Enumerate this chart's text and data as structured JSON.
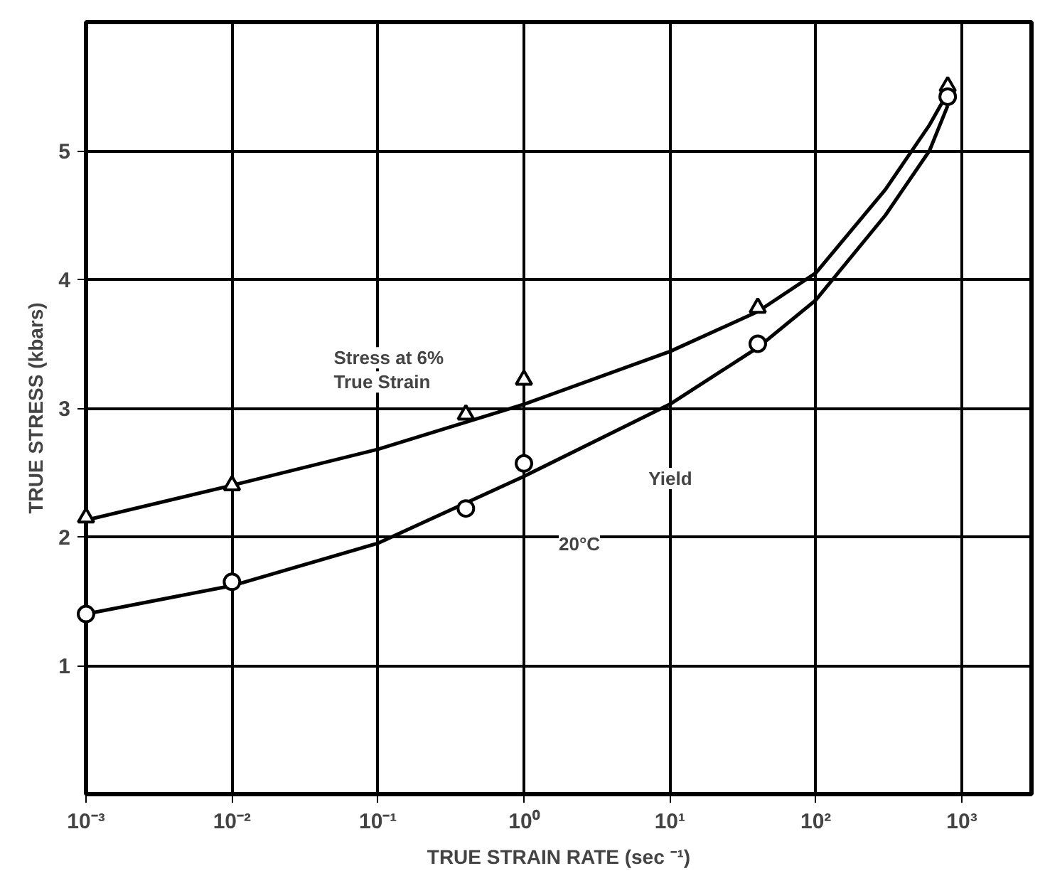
{
  "chart_data": {
    "type": "line",
    "xlabel": "TRUE STRAIN RATE (sec ⁻¹)",
    "ylabel": "TRUE STRESS (kbars)",
    "log": "x",
    "grid": true,
    "xlim": [
      0.001,
      3000
    ],
    "ylim": [
      0,
      6
    ],
    "xticks": [
      {
        "value": 0.001,
        "label": "10⁻³"
      },
      {
        "value": 0.01,
        "label": "10⁻²"
      },
      {
        "value": 0.1,
        "label": "10⁻¹"
      },
      {
        "value": 1,
        "label": "10⁰"
      },
      {
        "value": 10,
        "label": "10¹"
      },
      {
        "value": 100,
        "label": "10²"
      },
      {
        "value": 1000,
        "label": "10³"
      }
    ],
    "yticks": [
      1,
      2,
      3,
      4,
      5
    ],
    "series": [
      {
        "type": "scatter",
        "marker": "triangle",
        "color": "#000000",
        "x": [
          0.001,
          0.01,
          0.4,
          1,
          40,
          800
        ],
        "values": [
          2.15,
          2.4,
          2.95,
          3.22,
          3.78,
          5.5
        ]
      },
      {
        "type": "scatter",
        "marker": "circle",
        "color": "#000000",
        "x": [
          0.001,
          0.01,
          0.4,
          1,
          40,
          800
        ],
        "values": [
          1.4,
          1.65,
          2.22,
          2.57,
          3.5,
          5.42
        ]
      },
      {
        "type": "line",
        "marker": "none",
        "color": "#000000",
        "x": [
          0.001,
          0.01,
          0.1,
          1,
          10,
          40,
          100,
          300,
          600,
          800
        ],
        "values": [
          2.13,
          2.4,
          2.68,
          3.03,
          3.44,
          3.75,
          4.05,
          4.7,
          5.2,
          5.45
        ]
      },
      {
        "type": "line",
        "marker": "none",
        "color": "#000000",
        "x": [
          0.001,
          0.01,
          0.1,
          1,
          10,
          40,
          100,
          300,
          600,
          800
        ],
        "values": [
          1.4,
          1.62,
          1.95,
          2.47,
          3.03,
          3.47,
          3.84,
          4.5,
          5.0,
          5.35
        ]
      }
    ],
    "annotations": [
      "Stress at 6%\nTrue Strain",
      "Yield",
      "20°C"
    ]
  }
}
